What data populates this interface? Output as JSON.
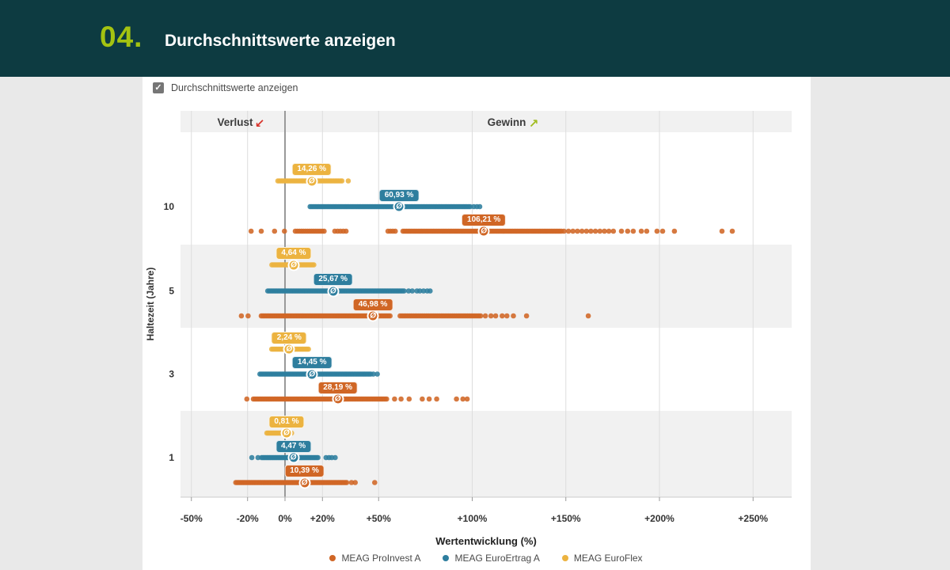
{
  "header": {
    "step": "04.",
    "title": "Durchschnittswerte anzeigen"
  },
  "controls": {
    "checkbox_label": "Durchschnittswerte anzeigen",
    "checked": true,
    "check_glyph": "✓"
  },
  "chart_data": {
    "type": "scatter",
    "subtype": "strip-dot-plot",
    "xlabel": "Wertentwicklung (%)",
    "ylabel": "Haltezeit (Jahre)",
    "xlim": [
      -56,
      271
    ],
    "grid": true,
    "zone_labels": {
      "loss": "Verlust",
      "gain": "Gewinn",
      "loss_arrow": "↙",
      "gain_arrow": "↗",
      "loss_color": "#d8342c",
      "gain_color": "#a0bc1e"
    },
    "avg_marker_glyph": "Ø",
    "x_ticks": [
      {
        "value": -50,
        "label": "-50%"
      },
      {
        "value": -20,
        "label": "-20%"
      },
      {
        "value": 0,
        "label": "0%"
      },
      {
        "value": 20,
        "label": "+20%"
      },
      {
        "value": 50,
        "label": "+50%"
      },
      {
        "value": 100,
        "label": "+100%"
      },
      {
        "value": 150,
        "label": "+150%"
      },
      {
        "value": 200,
        "label": "+200%"
      },
      {
        "value": 250,
        "label": "+250%"
      }
    ],
    "legend": [
      {
        "name": "MEAG ProInvest A",
        "color": "#d06625"
      },
      {
        "name": "MEAG EuroErtrag A",
        "color": "#2e7e9e"
      },
      {
        "name": "MEAG EuroFlex",
        "color": "#ecb340"
      }
    ],
    "groups": [
      {
        "period": "10",
        "rows": [
          {
            "series": "MEAG EuroFlex",
            "color": "#ecb340",
            "avg": 14.26,
            "avg_label": "14,26 %",
            "runs": [
              [
                -3.8,
                30.9,
                0.9
              ]
            ],
            "points": [
              33.8
            ]
          },
          {
            "series": "MEAG EuroErtrag A",
            "color": "#2e7e9e",
            "avg": 60.93,
            "avg_label": "60,93 %",
            "runs": [
              [
                13.4,
                99.4,
                0.9
              ]
            ],
            "points": [
              100.8,
              102.5,
              104
            ]
          },
          {
            "series": "MEAG ProInvest A",
            "color": "#d06625",
            "avg": 106.21,
            "avg_label": "106,21 %",
            "runs": [
              [
                5.5,
                21,
                1.1
              ],
              [
                26.6,
                32.6,
                1.5
              ],
              [
                55,
                59,
                1.3
              ],
              [
                63,
                148,
                0.9
              ],
              [
                149,
                175.5,
                2.4
              ]
            ],
            "points": [
              -18.1,
              -12.7,
              -5.6,
              -0.3,
              179.7,
              183,
              186,
              190.3,
              193.2,
              198.7,
              201.7,
              208,
              233.4,
              238.9
            ]
          }
        ]
      },
      {
        "period": "5",
        "rows": [
          {
            "series": "MEAG EuroFlex",
            "color": "#ecb340",
            "avg": 4.64,
            "avg_label": "4,64 %",
            "runs": [
              [
                -7,
                15.5,
                0.7
              ]
            ],
            "points": []
          },
          {
            "series": "MEAG EuroErtrag A",
            "color": "#2e7e9e",
            "avg": 25.67,
            "avg_label": "25,67 %",
            "runs": [
              [
                -9.2,
                64,
                0.8
              ]
            ],
            "points": [
              66,
              68,
              70.5,
              72,
              74,
              76,
              77.5
            ]
          },
          {
            "series": "MEAG ProInvest A",
            "color": "#d06625",
            "avg": 46.98,
            "avg_label": "46,98 %",
            "runs": [
              [
                -12.7,
                56.4,
                0.8
              ],
              [
                61.5,
                105,
                1.0
              ]
            ],
            "points": [
              -23.3,
              -19.7,
              107,
              110,
              112.5,
              116,
              118.5,
              122,
              129,
              162
            ]
          }
        ]
      },
      {
        "period": "3",
        "rows": [
          {
            "series": "MEAG EuroFlex",
            "color": "#ecb340",
            "avg": 2.24,
            "avg_label": "2,24 %",
            "runs": [
              [
                -7.1,
                12.7,
                0.7
              ]
            ],
            "points": []
          },
          {
            "series": "MEAG EuroErtrag A",
            "color": "#2e7e9e",
            "avg": 14.45,
            "avg_label": "14,45 %",
            "runs": [
              [
                -13.4,
                45.8,
                0.8
              ]
            ],
            "points": [
              47.2,
              49.3
            ]
          },
          {
            "series": "MEAG ProInvest A",
            "color": "#d06625",
            "avg": 28.19,
            "avg_label": "28,19 %",
            "runs": [
              [
                -16.9,
                55,
                0.8
              ]
            ],
            "points": [
              -20.4,
              58.5,
              62,
              66.3,
              73.3,
              77,
              81,
              91.6,
              95,
              97.3
            ]
          }
        ]
      },
      {
        "period": "1",
        "rows": [
          {
            "series": "MEAG EuroFlex",
            "color": "#ecb340",
            "avg": 0.81,
            "avg_label": "0,81 %",
            "runs": [
              [
                -9.7,
                3.9,
                0.6
              ]
            ],
            "points": []
          },
          {
            "series": "MEAG EuroErtrag A",
            "color": "#2e7e9e",
            "avg": 4.47,
            "avg_label": "4,47 %",
            "runs": [
              [
                -12.5,
                17.6,
                0.7
              ]
            ],
            "points": [
              -17.7,
              -14.4,
              21.9,
              23.5,
              25,
              26.8
            ]
          },
          {
            "series": "MEAG ProInvest A",
            "color": "#d06625",
            "avg": 10.39,
            "avg_label": "10,39 %",
            "runs": [
              [
                -26.3,
                33,
                0.75
              ]
            ],
            "points": [
              35.5,
              37.5,
              47.9
            ]
          }
        ]
      }
    ]
  }
}
